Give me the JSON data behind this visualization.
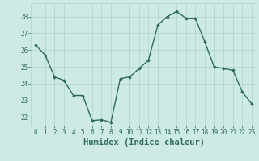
{
  "x": [
    0,
    1,
    2,
    3,
    4,
    5,
    6,
    7,
    8,
    9,
    10,
    11,
    12,
    13,
    14,
    15,
    16,
    17,
    18,
    19,
    20,
    21,
    22,
    23
  ],
  "y": [
    26.3,
    25.7,
    24.4,
    24.2,
    23.3,
    23.3,
    21.8,
    21.85,
    21.7,
    24.3,
    24.4,
    24.9,
    25.4,
    27.5,
    28.0,
    28.3,
    27.9,
    27.9,
    26.5,
    25.0,
    24.9,
    24.8,
    23.5,
    22.8
  ],
  "line_color": "#2e6b5e",
  "marker": "D",
  "marker_size": 1.8,
  "bg_color": "#ceeae4",
  "grid_color": "#aed4cc",
  "xlabel": "Humidex (Indice chaleur)",
  "xlim": [
    -0.5,
    23.5
  ],
  "ylim": [
    21.5,
    28.8
  ],
  "yticks": [
    22,
    23,
    24,
    25,
    26,
    27,
    28
  ],
  "xticks": [
    0,
    1,
    2,
    3,
    4,
    5,
    6,
    7,
    8,
    9,
    10,
    11,
    12,
    13,
    14,
    15,
    16,
    17,
    18,
    19,
    20,
    21,
    22,
    23
  ],
  "tick_fontsize": 5.5,
  "xlabel_fontsize": 7.5,
  "line_width": 1.0
}
